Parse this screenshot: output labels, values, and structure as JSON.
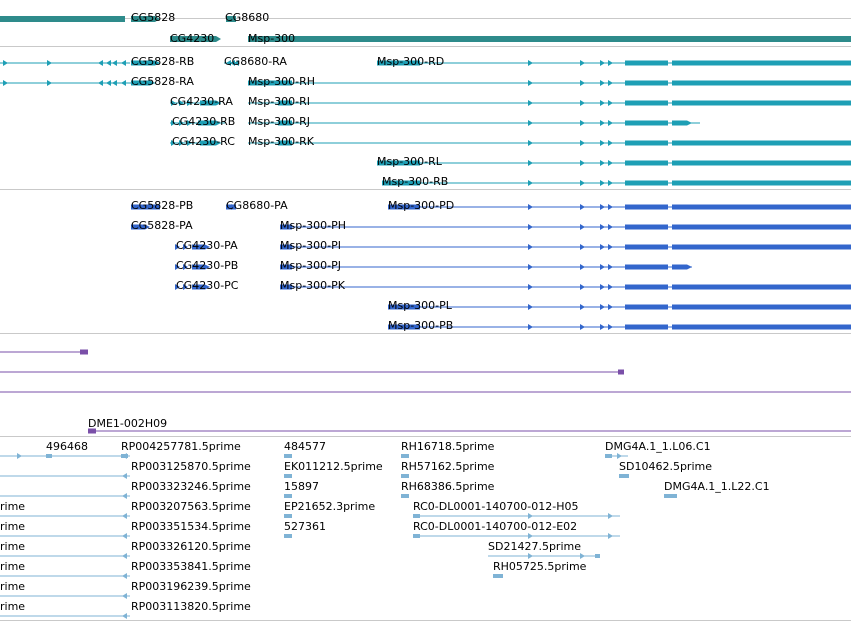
{
  "colors": {
    "gene": "#2e8b8b",
    "mrna": "#1e9fb5",
    "protein": "#3366cc",
    "alignment": "#7a4fa8",
    "est": "#7fb3d5",
    "divider": "#c9c9c9"
  },
  "tracks": [
    {
      "id": "gene-track",
      "features": [
        {
          "id": "gene-left",
          "label": ""
        },
        {
          "id": "cg5828",
          "label": "CG5828"
        },
        {
          "id": "cg8680",
          "label": "CG8680"
        },
        {
          "id": "cg4230",
          "label": "CG4230"
        },
        {
          "id": "msp300",
          "label": "Msp-300"
        }
      ]
    },
    {
      "id": "transcript-track",
      "features": [
        {
          "id": "cg5828-rb",
          "label": "CG5828-RB"
        },
        {
          "id": "cg8680-ra",
          "label": "CG8680-RA"
        },
        {
          "id": "msp300-rd",
          "label": "Msp-300-RD"
        },
        {
          "id": "cg5828-ra",
          "label": "CG5828-RA"
        },
        {
          "id": "msp300-rh",
          "label": "Msp-300-RH"
        },
        {
          "id": "cg4230-ra",
          "label": "CG4230-RA"
        },
        {
          "id": "msp300-ri",
          "label": "Msp-300-RI"
        },
        {
          "id": "cg4230-rb",
          "label": "CG4230-RB"
        },
        {
          "id": "msp300-rj",
          "label": "Msp-300-RJ"
        },
        {
          "id": "cg4230-rc",
          "label": "CG4230-RC"
        },
        {
          "id": "msp300-rk",
          "label": "Msp-300-RK"
        },
        {
          "id": "msp300-rl",
          "label": "Msp-300-RL"
        },
        {
          "id": "msp300-rb",
          "label": "Msp-300-RB"
        }
      ]
    },
    {
      "id": "protein-track",
      "features": [
        {
          "id": "cg5828-pb",
          "label": "CG5828-PB"
        },
        {
          "id": "cg8680-pa",
          "label": "CG8680-PA"
        },
        {
          "id": "msp300-pd",
          "label": "Msp-300-PD"
        },
        {
          "id": "cg5828-pa",
          "label": "CG5828-PA"
        },
        {
          "id": "msp300-ph",
          "label": "Msp-300-PH"
        },
        {
          "id": "cg4230-pa",
          "label": "CG4230-PA"
        },
        {
          "id": "msp300-pi",
          "label": "Msp-300-PI"
        },
        {
          "id": "cg4230-pb",
          "label": "CG4230-PB"
        },
        {
          "id": "msp300-pj",
          "label": "Msp-300-PJ"
        },
        {
          "id": "cg4230-pc",
          "label": "CG4230-PC"
        },
        {
          "id": "msp300-pk",
          "label": "Msp-300-PK"
        },
        {
          "id": "msp300-pl",
          "label": "Msp-300-PL"
        },
        {
          "id": "msp300-pb",
          "label": "Msp-300-PB"
        }
      ]
    },
    {
      "id": "alignment-track",
      "features": [
        {
          "id": "aln-1",
          "label": ""
        },
        {
          "id": "aln-2",
          "label": ""
        },
        {
          "id": "aln-3",
          "label": ""
        },
        {
          "id": "dme1-002h09",
          "label": "DME1-002H09"
        }
      ]
    },
    {
      "id": "est-track",
      "features": [
        {
          "id": "est-496468",
          "label": "496468"
        },
        {
          "id": "est-rp004257781",
          "label": "RP004257781.5prime"
        },
        {
          "id": "est-484577",
          "label": "484577"
        },
        {
          "id": "est-rh16718",
          "label": "RH16718.5prime"
        },
        {
          "id": "est-dmg4a-l06",
          "label": "DMG4A.1_1.L06.C1"
        },
        {
          "id": "est-rp003125870",
          "label": "RP003125870.5prime"
        },
        {
          "id": "est-ek011212",
          "label": "EK011212.5prime"
        },
        {
          "id": "est-rh57162",
          "label": "RH57162.5prime"
        },
        {
          "id": "est-sd10462",
          "label": "SD10462.5prime"
        },
        {
          "id": "est-rp003323246",
          "label": "RP003323246.5prime"
        },
        {
          "id": "est-15897",
          "label": "15897"
        },
        {
          "id": "est-rh68386",
          "label": "RH68386.5prime"
        },
        {
          "id": "est-dmg4a-l22",
          "label": "DMG4A.1_1.L22.C1"
        },
        {
          "id": "est-left-1",
          "label": "rime"
        },
        {
          "id": "est-rp003207563",
          "label": "RP003207563.5prime"
        },
        {
          "id": "est-ep21652",
          "label": "EP21652.3prime"
        },
        {
          "id": "est-rc0-h05",
          "label": "RC0-DL0001-140700-012-H05"
        },
        {
          "id": "est-left-2",
          "label": "rime"
        },
        {
          "id": "est-rp003351534",
          "label": "RP003351534.5prime"
        },
        {
          "id": "est-527361",
          "label": "527361"
        },
        {
          "id": "est-rc0-e02",
          "label": "RC0-DL0001-140700-012-E02"
        },
        {
          "id": "est-left-3",
          "label": "rime"
        },
        {
          "id": "est-rp003326120",
          "label": "RP003326120.5prime"
        },
        {
          "id": "est-sd21427",
          "label": "SD21427.5prime"
        },
        {
          "id": "est-left-4",
          "label": "rime"
        },
        {
          "id": "est-rp003353841",
          "label": "RP003353841.5prime"
        },
        {
          "id": "est-rh05725",
          "label": "RH05725.5prime"
        },
        {
          "id": "est-left-5",
          "label": "rime"
        },
        {
          "id": "est-rp003196239",
          "label": "RP003196239.5prime"
        },
        {
          "id": "est-left-6",
          "label": "rime"
        },
        {
          "id": "est-rp003113820",
          "label": "RP003113820.5prime"
        }
      ]
    }
  ]
}
